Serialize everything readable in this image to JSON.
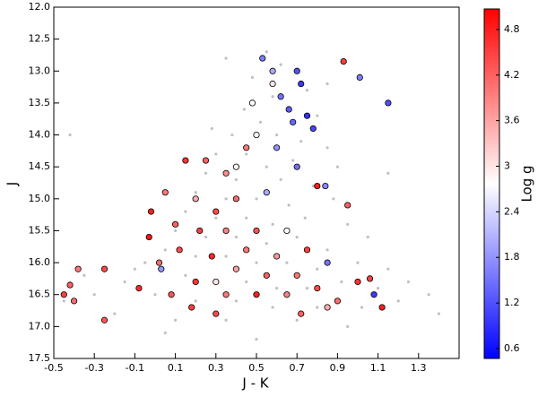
{
  "chart_data": {
    "type": "scatter",
    "x_label": "J - K",
    "y_label": "J",
    "xlim": [
      -0.5,
      1.5
    ],
    "ylim": [
      12.0,
      17.5
    ],
    "y_inverted": true,
    "xticks": [
      -0.5,
      -0.3,
      -0.1,
      0.1,
      0.3,
      0.5,
      0.7,
      0.9,
      1.1,
      1.3
    ],
    "yticks": [
      {
        "value": 12.0,
        "label": "12.0"
      },
      12.5,
      {
        "value": 13.0,
        "label": "13.0"
      },
      13.5,
      {
        "value": 14.0,
        "label": "14.0"
      },
      14.5,
      {
        "value": 15.0,
        "label": "15.0"
      },
      15.5,
      {
        "value": 16.0,
        "label": "16.0"
      },
      16.5,
      {
        "value": 17.0,
        "label": "17.0"
      },
      17.5
    ],
    "background": {
      "color": "#c0c0c0",
      "x": [
        0.55,
        0.62,
        0.48,
        0.7,
        0.75,
        0.58,
        0.44,
        0.66,
        0.8,
        0.52,
        0.38,
        0.6,
        0.72,
        0.85,
        0.3,
        0.45,
        0.55,
        0.68,
        0.9,
        0.25,
        0.4,
        0.62,
        0.78,
        0.2,
        0.35,
        0.5,
        0.66,
        0.88,
        0.15,
        0.3,
        0.45,
        0.58,
        0.74,
        0.95,
        0.1,
        0.25,
        0.4,
        0.55,
        0.7,
        0.85,
        1.05,
        0.05,
        0.2,
        0.35,
        0.5,
        0.65,
        0.8,
        1.0,
        1.15,
        -0.05,
        0.15,
        0.3,
        0.45,
        0.6,
        0.75,
        0.92,
        1.1,
        1.25,
        -0.15,
        -0.3,
        -0.45,
        0.0,
        0.2,
        0.4,
        0.58,
        0.8,
        1.02,
        1.2,
        1.35,
        -0.35,
        -0.2,
        0.1,
        0.35,
        0.7,
        0.95,
        -0.1,
        0.05,
        0.5,
        1.4,
        -0.42,
        1.15,
        0.28,
        0.85,
        0.35
      ],
      "y": [
        12.7,
        12.9,
        13.1,
        13.0,
        13.3,
        13.4,
        13.6,
        13.6,
        13.7,
        13.8,
        14.0,
        14.0,
        14.1,
        14.2,
        14.3,
        14.3,
        14.5,
        14.4,
        14.5,
        14.6,
        14.7,
        14.7,
        14.8,
        14.9,
        15.0,
        15.0,
        15.1,
        15.0,
        15.2,
        15.3,
        15.3,
        15.4,
        15.3,
        15.4,
        15.5,
        15.6,
        15.6,
        15.7,
        15.6,
        15.8,
        15.6,
        15.8,
        15.9,
        15.9,
        16.0,
        16.0,
        16.1,
        16.0,
        16.1,
        16.0,
        16.2,
        16.3,
        16.3,
        16.4,
        16.4,
        16.3,
        16.4,
        16.3,
        16.3,
        16.5,
        16.6,
        16.5,
        16.6,
        16.6,
        16.7,
        16.7,
        16.7,
        16.6,
        16.5,
        16.2,
        16.8,
        16.9,
        16.9,
        16.9,
        17.0,
        16.1,
        17.1,
        17.2,
        16.8,
        14.0,
        14.6,
        13.9,
        13.2,
        12.8
      ]
    },
    "stars": {
      "edge_color": "#000000",
      "colormap": "bwr",
      "x": [
        0.53,
        0.58,
        0.7,
        0.72,
        0.62,
        0.66,
        0.75,
        0.68,
        0.78,
        0.6,
        1.15,
        1.01,
        0.7,
        0.55,
        0.84,
        1.08,
        0.85,
        0.03,
        0.93,
        0.48,
        0.58,
        0.4,
        0.5,
        0.65,
        0.3,
        0.45,
        0.25,
        0.35,
        0.15,
        0.05,
        0.2,
        0.4,
        0.3,
        -0.02,
        0.1,
        0.22,
        0.35,
        0.5,
        0.45,
        0.28,
        0.12,
        -0.03,
        0.02,
        0.6,
        0.75,
        0.55,
        0.4,
        0.7,
        0.2,
        0.08,
        0.35,
        0.5,
        0.65,
        0.8,
        0.9,
        1.0,
        1.12,
        0.72,
        0.18,
        -0.45,
        -0.38,
        -0.42,
        -0.25,
        -0.08,
        -0.25,
        -0.4,
        0.8,
        1.06,
        0.95,
        0.3,
        0.85
      ],
      "y": [
        12.8,
        13.0,
        13.0,
        13.2,
        13.4,
        13.6,
        13.7,
        13.8,
        13.9,
        14.2,
        13.5,
        13.1,
        14.5,
        14.9,
        14.8,
        16.5,
        16.0,
        16.1,
        12.85,
        13.5,
        13.2,
        14.5,
        14.0,
        15.5,
        16.3,
        14.2,
        14.4,
        14.6,
        14.4,
        14.9,
        15.0,
        15.0,
        15.2,
        15.2,
        15.4,
        15.5,
        15.5,
        15.5,
        15.8,
        15.9,
        15.8,
        15.6,
        16.0,
        15.9,
        15.8,
        16.2,
        16.1,
        16.2,
        16.3,
        16.5,
        16.5,
        16.5,
        16.5,
        16.4,
        16.6,
        16.3,
        16.7,
        16.8,
        16.7,
        16.5,
        16.1,
        16.35,
        16.1,
        16.4,
        16.9,
        16.6,
        14.8,
        16.25,
        15.1,
        16.8,
        16.7
      ],
      "logg": [
        1.6,
        2.0,
        1.2,
        1.0,
        1.5,
        1.3,
        0.9,
        1.4,
        1.1,
        1.8,
        1.2,
        1.6,
        1.5,
        2.0,
        1.7,
        1.0,
        1.5,
        1.8,
        4.5,
        2.8,
        3.0,
        2.9,
        2.7,
        2.8,
        3.0,
        4.0,
        4.2,
        3.8,
        4.6,
        4.0,
        3.5,
        4.1,
        4.4,
        4.8,
        4.2,
        4.5,
        3.9,
        4.3,
        4.0,
        4.7,
        4.4,
        4.9,
        4.1,
        3.7,
        4.5,
        4.2,
        3.6,
        4.0,
        4.6,
        4.3,
        4.0,
        4.8,
        3.9,
        4.4,
        4.1,
        4.6,
        4.8,
        4.2,
        4.5,
        4.5,
        4.0,
        4.2,
        4.4,
        4.7,
        4.3,
        4.1,
        4.8,
        4.5,
        4.2,
        4.4,
        3.5
      ]
    },
    "colorbar": {
      "label": "Log g",
      "clim": [
        0.47,
        5.07
      ],
      "ticks": [
        0.6,
        1.2,
        1.8,
        2.4,
        3.0,
        3.6,
        4.2,
        4.8
      ]
    }
  }
}
